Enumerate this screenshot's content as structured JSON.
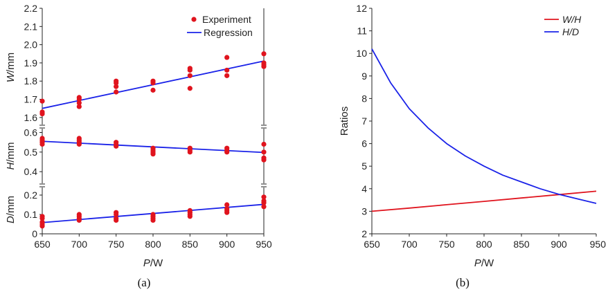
{
  "captions": {
    "a": "(a)",
    "b": "(b)"
  },
  "chart_data": [
    {
      "type": "scatter",
      "panel": "a",
      "xlabel": {
        "italic": "P",
        "rest": "/W"
      },
      "x_ticks": [
        "650",
        "700",
        "750",
        "800",
        "850",
        "900",
        "950"
      ],
      "xlim": [
        650,
        950
      ],
      "legend": {
        "position": "top-right",
        "experiment": "Experiment",
        "regression": "Regression"
      },
      "subplots": [
        {
          "key": "W",
          "ylabel": {
            "italic": "W",
            "rest": "/mm"
          },
          "ylim": [
            1.55,
            2.2
          ],
          "y_ticks": [
            1.6,
            1.7,
            1.8,
            1.9,
            2.0,
            2.1,
            2.2
          ],
          "y_tick_labels": [
            "1.6",
            "1.7",
            "1.8",
            "1.9",
            "2.0",
            "2.1",
            "2.2"
          ],
          "experiment": [
            [
              650,
              1.69
            ],
            [
              650,
              1.63
            ],
            [
              650,
              1.62
            ],
            [
              700,
              1.71
            ],
            [
              700,
              1.7
            ],
            [
              700,
              1.68
            ],
            [
              700,
              1.66
            ],
            [
              750,
              1.8
            ],
            [
              750,
              1.79
            ],
            [
              750,
              1.77
            ],
            [
              750,
              1.74
            ],
            [
              800,
              1.8
            ],
            [
              800,
              1.79
            ],
            [
              800,
              1.75
            ],
            [
              850,
              1.87
            ],
            [
              850,
              1.86
            ],
            [
              850,
              1.83
            ],
            [
              850,
              1.76
            ],
            [
              900,
              1.93
            ],
            [
              900,
              1.86
            ],
            [
              900,
              1.83
            ],
            [
              950,
              1.95
            ],
            [
              950,
              1.9
            ],
            [
              950,
              1.89
            ],
            [
              950,
              1.88
            ]
          ],
          "regression": [
            [
              650,
              1.65
            ],
            [
              950,
              1.91
            ]
          ]
        },
        {
          "key": "H",
          "ylabel": {
            "italic": "H",
            "rest": "/mm"
          },
          "ylim": [
            0.33,
            0.63
          ],
          "y_ticks": [
            0.4,
            0.5,
            0.6
          ],
          "y_tick_labels": [
            "0.4",
            "0.5",
            "0.6"
          ],
          "experiment": [
            [
              650,
              0.57
            ],
            [
              650,
              0.56
            ],
            [
              650,
              0.55
            ],
            [
              650,
              0.54
            ],
            [
              700,
              0.57
            ],
            [
              700,
              0.56
            ],
            [
              700,
              0.55
            ],
            [
              700,
              0.54
            ],
            [
              750,
              0.55
            ],
            [
              750,
              0.54
            ],
            [
              750,
              0.53
            ],
            [
              800,
              0.52
            ],
            [
              800,
              0.51
            ],
            [
              800,
              0.5
            ],
            [
              800,
              0.49
            ],
            [
              850,
              0.52
            ],
            [
              850,
              0.51
            ],
            [
              850,
              0.5
            ],
            [
              900,
              0.52
            ],
            [
              900,
              0.51
            ],
            [
              900,
              0.5
            ],
            [
              950,
              0.54
            ],
            [
              950,
              0.5
            ],
            [
              950,
              0.47
            ],
            [
              950,
              0.46
            ]
          ],
          "regression": [
            [
              650,
              0.555
            ],
            [
              950,
              0.498
            ]
          ]
        },
        {
          "key": "D",
          "ylabel": {
            "italic": "D",
            "rest": "/mm"
          },
          "ylim": [
            0,
            0.25
          ],
          "y_ticks": [
            0,
            0.1,
            0.2
          ],
          "y_tick_labels": [
            "0",
            "0.1",
            "0.2"
          ],
          "experiment": [
            [
              650,
              0.09
            ],
            [
              650,
              0.08
            ],
            [
              650,
              0.06
            ],
            [
              650,
              0.05
            ],
            [
              650,
              0.04
            ],
            [
              700,
              0.1
            ],
            [
              700,
              0.09
            ],
            [
              700,
              0.08
            ],
            [
              700,
              0.07
            ],
            [
              750,
              0.11
            ],
            [
              750,
              0.1
            ],
            [
              750,
              0.08
            ],
            [
              750,
              0.07
            ],
            [
              800,
              0.1
            ],
            [
              800,
              0.09
            ],
            [
              800,
              0.08
            ],
            [
              800,
              0.07
            ],
            [
              850,
              0.12
            ],
            [
              850,
              0.11
            ],
            [
              850,
              0.1
            ],
            [
              850,
              0.09
            ],
            [
              900,
              0.15
            ],
            [
              900,
              0.13
            ],
            [
              900,
              0.12
            ],
            [
              900,
              0.11
            ],
            [
              950,
              0.19
            ],
            [
              950,
              0.17
            ],
            [
              950,
              0.16
            ],
            [
              950,
              0.14
            ]
          ],
          "regression": [
            [
              650,
              0.058
            ],
            [
              950,
              0.152
            ]
          ]
        }
      ],
      "colors": {
        "experiment": "#e0141e",
        "regression": "#1a22e8"
      }
    },
    {
      "type": "line",
      "panel": "b",
      "xlabel": {
        "italic": "P",
        "rest": "/W"
      },
      "ylabel": "Ratios",
      "xlim": [
        650,
        950
      ],
      "ylim": [
        2,
        12
      ],
      "x_ticks": [
        "650",
        "700",
        "750",
        "800",
        "850",
        "900",
        "950"
      ],
      "y_ticks": [
        "2",
        "3",
        "4",
        "5",
        "6",
        "7",
        "8",
        "9",
        "10",
        "11",
        "12"
      ],
      "legend": {
        "position": "top-right"
      },
      "series": [
        {
          "name": "W/H",
          "color": "#e0141e",
          "x": [
            650,
            700,
            750,
            800,
            850,
            900,
            950
          ],
          "y": [
            3.0,
            3.14,
            3.29,
            3.44,
            3.59,
            3.74,
            3.89
          ]
        },
        {
          "name": "H/D",
          "color": "#1a22e8",
          "x": [
            650,
            675,
            700,
            725,
            750,
            775,
            800,
            825,
            850,
            875,
            900,
            925,
            950
          ],
          "y": [
            10.2,
            8.7,
            7.55,
            6.7,
            6.0,
            5.45,
            5.0,
            4.6,
            4.3,
            4.0,
            3.75,
            3.55,
            3.35
          ]
        }
      ]
    }
  ]
}
